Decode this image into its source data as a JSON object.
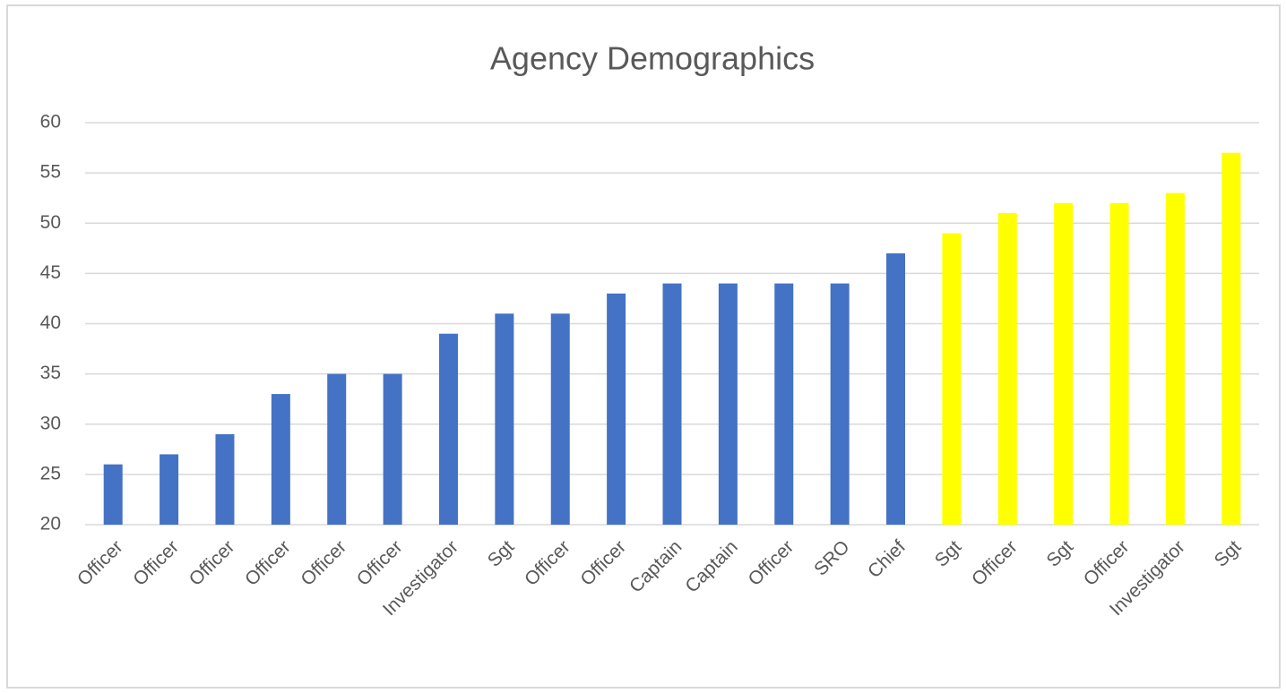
{
  "chart_data": {
    "type": "bar",
    "title": "Agency Demographics",
    "categories": [
      "Officer",
      "Officer",
      "Officer",
      "Officer",
      "Officer",
      "Officer",
      "Investigator",
      "Sgt",
      "Officer",
      "Officer",
      "Captain",
      "Captain",
      "Officer",
      "SRO",
      "Chief",
      "Sgt",
      "Officer",
      "Sgt",
      "Officer",
      "Investigator",
      "Sgt"
    ],
    "values": [
      26,
      27,
      29,
      33,
      35,
      35,
      39,
      41,
      41,
      43,
      44,
      44,
      44,
      44,
      47,
      49,
      51,
      52,
      52,
      53,
      57
    ],
    "colors": [
      "#4472c4",
      "#4472c4",
      "#4472c4",
      "#4472c4",
      "#4472c4",
      "#4472c4",
      "#4472c4",
      "#4472c4",
      "#4472c4",
      "#4472c4",
      "#4472c4",
      "#4472c4",
      "#4472c4",
      "#4472c4",
      "#4472c4",
      "#ffff00",
      "#ffff00",
      "#ffff00",
      "#ffff00",
      "#ffff00",
      "#ffff00"
    ],
    "ylim": [
      20,
      60
    ],
    "yticks": [
      20,
      25,
      30,
      35,
      40,
      45,
      50,
      55,
      60
    ],
    "grid": true
  }
}
